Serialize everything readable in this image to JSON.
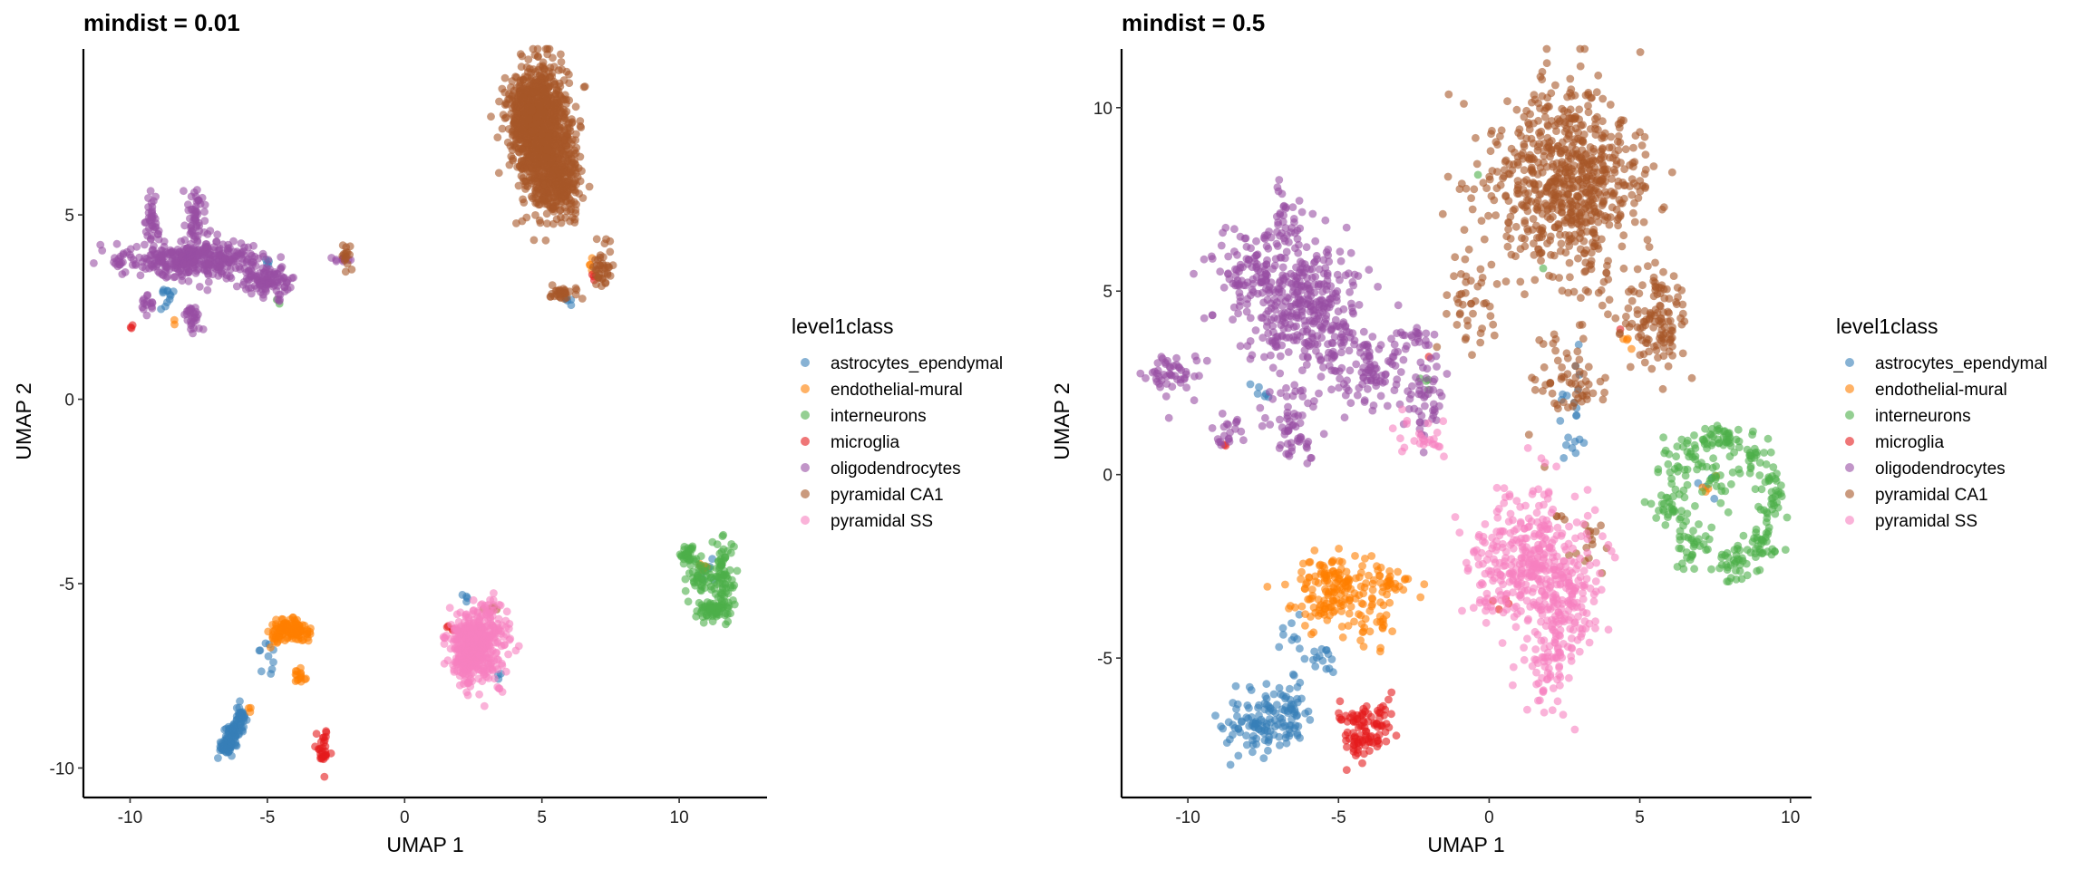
{
  "chart_data": [
    {
      "type": "scatter",
      "title": "mindist = 0.01",
      "xlabel": "UMAP 1",
      "ylabel": "UMAP 2",
      "xlim": [
        -11.7,
        13.2
      ],
      "ylim": [
        -10.8,
        9.5
      ],
      "xticks": [
        -10,
        -5,
        0,
        5,
        10
      ],
      "yticks": [
        -10,
        -5,
        0,
        5
      ],
      "grid": false,
      "legend": {
        "title": "level1class",
        "placement": "right"
      },
      "point_alpha": 0.6,
      "series": [
        {
          "name": "astrocytes_ependymal",
          "color": "#377EB8",
          "clusters": [
            [
              -8.7,
              2.8,
              0.15,
              0.2,
              12
            ],
            [
              -5,
              3.7,
              0.08,
              0.05,
              4
            ],
            [
              -6.5,
              -9.4,
              0.15,
              0.12,
              50
            ],
            [
              -6.2,
              -9.0,
              0.15,
              0.15,
              50
            ],
            [
              -5.95,
              -8.6,
              0.1,
              0.15,
              30
            ],
            [
              -5,
              -6.9,
              0.2,
              0.2,
              10
            ],
            [
              2.2,
              -5.3,
              0.06,
              0.06,
              4
            ],
            [
              3.4,
              -7.5,
              0.1,
              0.1,
              3
            ],
            [
              5.9,
              2.7,
              0.1,
              0.08,
              5
            ],
            [
              11,
              -4.8,
              0.2,
              0.2,
              6
            ]
          ]
        },
        {
          "name": "endothelial-mural",
          "color": "#FF7F00",
          "clusters": [
            [
              -4.2,
              -6.3,
              0.35,
              0.15,
              120
            ],
            [
              -3.8,
              -7.5,
              0.2,
              0.12,
              15
            ],
            [
              -5.6,
              -8.4,
              0.05,
              0.05,
              3
            ],
            [
              6.8,
              3.7,
              0.1,
              0.1,
              4
            ],
            [
              10.9,
              -4.5,
              0.25,
              0.1,
              6
            ],
            [
              -3.5,
              -6.4,
              0.1,
              0.1,
              4
            ],
            [
              -8.4,
              2.1,
              0.05,
              0.05,
              2
            ]
          ]
        },
        {
          "name": "interneurons",
          "color": "#4DAF4A",
          "clusters": [
            [
              10.3,
              -4.2,
              0.15,
              0.1,
              30
            ],
            [
              10.7,
              -4.8,
              0.2,
              0.3,
              40
            ],
            [
              11.6,
              -4.8,
              0.2,
              0.5,
              80
            ],
            [
              11.2,
              -5.7,
              0.35,
              0.15,
              60
            ],
            [
              -4.6,
              2.6,
              0.05,
              0.05,
              2
            ]
          ]
        },
        {
          "name": "microglia",
          "color": "#E41A1C",
          "clusters": [
            [
              -3,
              -9.5,
              0.15,
              0.25,
              30
            ],
            [
              -9.9,
              1.95,
              0.05,
              0.05,
              3
            ],
            [
              1.7,
              -6.2,
              0.1,
              0.08,
              6
            ],
            [
              6.9,
              3.3,
              0.06,
              0.06,
              3
            ]
          ]
        },
        {
          "name": "oligodendrocytes",
          "color": "#984EA3",
          "clusters": [
            [
              -7.5,
              3.8,
              1.2,
              0.25,
              350
            ],
            [
              -5,
              3.2,
              0.5,
              0.15,
              100
            ],
            [
              -9.2,
              4.8,
              0.12,
              0.4,
              40
            ],
            [
              -7.6,
              4.8,
              0.2,
              0.5,
              60
            ],
            [
              -7.7,
              2.2,
              0.15,
              0.2,
              30
            ],
            [
              -9.4,
              2.6,
              0.2,
              0.15,
              15
            ],
            [
              -10.4,
              3.8,
              0.1,
              0.1,
              10
            ],
            [
              -2.3,
              3.8,
              0.2,
              0.06,
              10
            ],
            [
              -4.6,
              2.7,
              0.06,
              0.08,
              5
            ]
          ]
        },
        {
          "name": "pyramidal CA1",
          "color": "#A65628",
          "clusters": [
            [
              5,
              7.2,
              0.5,
              0.9,
              900
            ],
            [
              4.5,
              7.8,
              0.4,
              0.5,
              300
            ],
            [
              5.7,
              6,
              0.35,
              0.6,
              250
            ],
            [
              5.8,
              2.85,
              0.25,
              0.1,
              30
            ],
            [
              7.2,
              3.5,
              0.15,
              0.35,
              40
            ],
            [
              -2.1,
              3.9,
              0.12,
              0.15,
              15
            ],
            [
              3.2,
              -5.7,
              0.2,
              0.05,
              6
            ]
          ]
        },
        {
          "name": "pyramidal SS",
          "color": "#F781BF",
          "clusters": [
            [
              2.7,
              -6.6,
              0.5,
              0.5,
              350
            ],
            [
              2.3,
              -6.9,
              0.25,
              0.4,
              150
            ],
            [
              3.5,
              -7.8,
              0.08,
              0.08,
              4
            ],
            [
              1.5,
              -6.5,
              0.1,
              0.1,
              5
            ]
          ]
        }
      ]
    },
    {
      "type": "scatter",
      "title": "mindist = 0.5",
      "xlabel": "UMAP 1",
      "ylabel": "UMAP 2",
      "xlim": [
        -12.2,
        10.7
      ],
      "ylim": [
        -8.8,
        11.6
      ],
      "xticks": [
        -10,
        -5,
        0,
        5,
        10
      ],
      "yticks": [
        -5,
        0,
        5,
        10
      ],
      "grid": false,
      "legend": {
        "title": "level1class",
        "placement": "right"
      },
      "point_alpha": 0.6,
      "series": [
        {
          "name": "astrocytes_ependymal",
          "color": "#377EB8",
          "clusters": [
            [
              -7.5,
              -6.8,
              0.6,
              0.45,
              110
            ],
            [
              -6.5,
              -6.3,
              0.3,
              0.5,
              30
            ],
            [
              -5.5,
              -5,
              0.3,
              0.2,
              15
            ],
            [
              -6.6,
              -4.5,
              0.3,
              0.4,
              10
            ],
            [
              2.8,
              1.5,
              0.3,
              0.7,
              20
            ],
            [
              -7.5,
              2.3,
              0.2,
              0.2,
              6
            ],
            [
              7.4,
              -0.6,
              0.2,
              0.3,
              4
            ]
          ]
        },
        {
          "name": "endothelial-mural",
          "color": "#FF7F00",
          "clusters": [
            [
              -5,
              -3,
              0.9,
              0.4,
              150
            ],
            [
              -3.3,
              -3,
              0.3,
              0.15,
              20
            ],
            [
              -3.8,
              -4.1,
              0.5,
              0.4,
              30
            ],
            [
              -5.5,
              -3.8,
              0.3,
              0.3,
              15
            ],
            [
              4.6,
              3.6,
              0.1,
              0.1,
              4
            ],
            [
              7.3,
              -0.3,
              0.2,
              0.2,
              4
            ]
          ]
        },
        {
          "name": "interneurons",
          "color": "#4DAF4A",
          "clusters": [
            [
              6,
              -0.8,
              0.3,
              0.35,
              35
            ],
            [
              6.4,
              0.5,
              0.35,
              0.3,
              35
            ],
            [
              7.5,
              1,
              0.35,
              0.25,
              35
            ],
            [
              8.7,
              0.6,
              0.35,
              0.3,
              35
            ],
            [
              9.4,
              -0.5,
              0.25,
              0.35,
              35
            ],
            [
              9,
              -1.8,
              0.3,
              0.3,
              35
            ],
            [
              8.2,
              -2.4,
              0.35,
              0.25,
              35
            ],
            [
              6.7,
              -2,
              0.3,
              0.3,
              35
            ],
            [
              7.6,
              -0.2,
              0.3,
              0.3,
              20
            ],
            [
              -2.1,
              2.5,
              0.2,
              0.2,
              4
            ],
            [
              1.9,
              5.6,
              0.05,
              0.05,
              1
            ],
            [
              -0.4,
              8.2,
              0.05,
              0.05,
              1
            ]
          ]
        },
        {
          "name": "microglia",
          "color": "#E41A1C",
          "clusters": [
            [
              -4.2,
              -7,
              0.45,
              0.4,
              90
            ],
            [
              -3.5,
              -6.5,
              0.2,
              0.2,
              10
            ],
            [
              -8.8,
              0.8,
              0.05,
              0.05,
              2
            ],
            [
              0.3,
              -3.3,
              0.3,
              0.3,
              4
            ],
            [
              -1.9,
              3.2,
              0.05,
              0.05,
              1
            ],
            [
              4.3,
              4,
              0.05,
              0.05,
              1
            ]
          ]
        },
        {
          "name": "oligodendrocytes",
          "color": "#984EA3",
          "clusters": [
            [
              -6.2,
              4.6,
              1.0,
              0.9,
              350
            ],
            [
              -8,
              5.5,
              0.6,
              0.6,
              80
            ],
            [
              -10.5,
              2.8,
              0.4,
              0.35,
              50
            ],
            [
              -6.8,
              6.8,
              0.3,
              0.5,
              40
            ],
            [
              -6.6,
              1.3,
              0.4,
              0.6,
              60
            ],
            [
              -8.5,
              1.3,
              0.3,
              0.4,
              20
            ],
            [
              -4,
              3,
              0.7,
              0.5,
              100
            ],
            [
              -2.2,
              2,
              0.4,
              0.5,
              50
            ],
            [
              -2.5,
              3.7,
              0.5,
              0.15,
              20
            ]
          ]
        },
        {
          "name": "pyramidal CA1",
          "color": "#A65628",
          "clusters": [
            [
              2.6,
              7.9,
              1.3,
              1.3,
              700
            ],
            [
              5.5,
              4.2,
              0.5,
              0.7,
              120
            ],
            [
              -0.7,
              4.5,
              0.4,
              0.8,
              40
            ],
            [
              2.6,
              2.6,
              0.6,
              0.6,
              60
            ],
            [
              3.3,
              -1.8,
              0.3,
              0.4,
              15
            ],
            [
              2.4,
              -1.1,
              0.2,
              0.2,
              4
            ],
            [
              1.8,
              0.4,
              0.1,
              0.1,
              1
            ]
          ]
        },
        {
          "name": "pyramidal SS",
          "color": "#F781BF",
          "clusters": [
            [
              1.2,
              -2.5,
              1.0,
              0.8,
              300
            ],
            [
              2.5,
              -3.4,
              0.6,
              0.9,
              150
            ],
            [
              2,
              -5.4,
              0.4,
              0.6,
              60
            ],
            [
              1.8,
              -0.5,
              0.3,
              0.6,
              20
            ],
            [
              -2.3,
              1,
              0.4,
              0.3,
              25
            ]
          ]
        }
      ]
    }
  ]
}
